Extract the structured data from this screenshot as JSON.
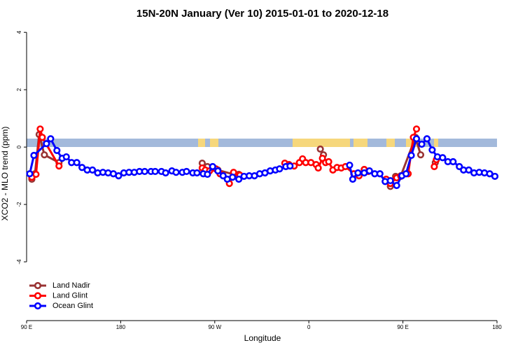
{
  "chart_data": {
    "type": "line",
    "title": "15N-20N January (Ver 10)   2015-01-01 to 2020-12-18",
    "xlabel": "Longitude",
    "ylabel": "XCO2 - MLO trend (ppm)",
    "xlim": [
      90,
      540
    ],
    "xticks": [
      {
        "value": 90,
        "label": "90 E"
      },
      180,
      {
        "value": 270,
        "label": "90 W"
      },
      {
        "value": 360,
        "label": "0"
      },
      {
        "value": 450,
        "label": "90 E"
      },
      {
        "value": 540,
        "label": "180"
      }
    ],
    "ylim": [
      -6,
      4.2
    ],
    "yticks": [
      -4,
      -2,
      0,
      2,
      4
    ],
    "legend": "bottom-left",
    "series": [
      {
        "name": "Land Nadir",
        "color": "#993333",
        "x": [
          95,
          98,
          102,
          107,
          121,
          null,
          258,
          263,
          269,
          273,
          288,
          293,
          null,
          371,
          374,
          null,
          413,
          null,
          438,
          443,
          448,
          462,
          467,
          null,
          481
        ],
        "values": [
          -1.12,
          -0.93,
          0.44,
          -0.27,
          -0.54,
          null,
          -0.56,
          -0.68,
          -0.73,
          -0.8,
          -0.95,
          -0.95,
          null,
          -0.07,
          -0.27,
          null,
          -0.78,
          null,
          -1.37,
          -1.02,
          -1.0,
          0.34,
          -0.27,
          null,
          -0.54
        ]
      },
      {
        "name": "Land Glint",
        "color": "#ff0000",
        "x": [
          95,
          99,
          103,
          105,
          121,
          null,
          258,
          261,
          265,
          271,
          275,
          284,
          288,
          294,
          null,
          337,
          341,
          346,
          351,
          354,
          357,
          362,
          367,
          369,
          373,
          376,
          379,
          383,
          387,
          391,
          395,
          403,
          408,
          413,
          417,
          null,
          434,
          438,
          444,
          448,
          455,
          460,
          463,
          null,
          480,
          482
        ],
        "values": [
          -1.05,
          -0.95,
          0.63,
          0.34,
          -0.66,
          null,
          -0.73,
          -0.8,
          -0.83,
          -0.76,
          -0.93,
          -1.27,
          -0.88,
          -0.98,
          null,
          -0.56,
          -0.61,
          -0.66,
          -0.54,
          -0.41,
          -0.54,
          -0.54,
          -0.61,
          -0.73,
          -0.39,
          -0.54,
          -0.51,
          -0.8,
          -0.71,
          -0.73,
          -0.68,
          -0.93,
          -1.0,
          -0.78,
          -0.85,
          null,
          -1.12,
          -1.27,
          -1.07,
          -1.02,
          -0.93,
          0.34,
          0.63,
          null,
          -0.68,
          -0.44
        ]
      },
      {
        "name": "Ocean Glint",
        "color": "#0000ff",
        "x": [
          93,
          97,
          109,
          113,
          119,
          124,
          128,
          133,
          138,
          143,
          148,
          153,
          158,
          163,
          168,
          173,
          178,
          183,
          188,
          193,
          198,
          203,
          209,
          213,
          219,
          223,
          229,
          233,
          239,
          243,
          249,
          253,
          259,
          263,
          268,
          273,
          278,
          282,
          287,
          293,
          298,
          303,
          308,
          313,
          318,
          323,
          328,
          332,
          338,
          342,
          null,
          399,
          402,
          407,
          413,
          418,
          423,
          428,
          433,
          438,
          444,
          449,
          453,
          458,
          463,
          468,
          473,
          478,
          483,
          488,
          493,
          498,
          504,
          508,
          513,
          518,
          523,
          528,
          533,
          538
        ],
        "values": [
          -0.93,
          -0.29,
          0.12,
          0.29,
          -0.12,
          -0.39,
          -0.34,
          -0.54,
          -0.54,
          -0.71,
          -0.8,
          -0.8,
          -0.9,
          -0.88,
          -0.9,
          -0.93,
          -1.0,
          -0.9,
          -0.88,
          -0.88,
          -0.85,
          -0.85,
          -0.85,
          -0.85,
          -0.85,
          -0.9,
          -0.83,
          -0.88,
          -0.88,
          -0.85,
          -0.9,
          -0.9,
          -0.93,
          -0.95,
          -0.68,
          -0.83,
          -1.0,
          -1.12,
          -1.05,
          -1.12,
          -1.02,
          -1.0,
          -1.0,
          -0.93,
          -0.9,
          -0.83,
          -0.8,
          -0.76,
          -0.68,
          -0.66,
          null,
          -0.63,
          -1.12,
          -0.9,
          -0.9,
          -0.83,
          -0.93,
          -0.93,
          -1.2,
          -1.17,
          -1.34,
          -1.0,
          -0.93,
          -0.29,
          0.29,
          0.1,
          0.29,
          -0.1,
          -0.34,
          -0.37,
          -0.51,
          -0.51,
          -0.68,
          -0.8,
          -0.8,
          -0.9,
          -0.88,
          -0.9,
          -0.93,
          -1.02
        ]
      }
    ]
  }
}
